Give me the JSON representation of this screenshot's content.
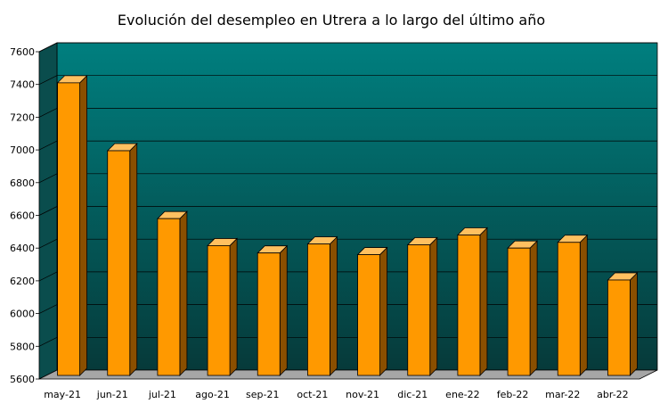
{
  "chart_data": {
    "type": "bar",
    "title": "Evolución del desempleo en Utrera a lo largo del último año",
    "xlabel": "",
    "ylabel": "",
    "categories": [
      "may-21",
      "jun-21",
      "jul-21",
      "ago-21",
      "sep-21",
      "oct-21",
      "nov-21",
      "dic-21",
      "ene-22",
      "feb-22",
      "mar-22",
      "abr-22"
    ],
    "values": [
      7410,
      6995,
      6580,
      6415,
      6370,
      6425,
      6360,
      6420,
      6480,
      6400,
      6435,
      6205
    ],
    "ylim": [
      5600,
      7600
    ],
    "yticks": [
      "5600",
      "5800",
      "6000",
      "6200",
      "6400",
      "6600",
      "6800",
      "7000",
      "7200",
      "7400",
      "7600"
    ],
    "grid": true,
    "legend": "none",
    "colors": {
      "bar_front": "#ff9900",
      "bar_side": "#8a4f00",
      "bar_top": "#ffc060",
      "bar_outline": "#000000",
      "wall_top": "#007f7f",
      "wall_bottom": "#063a3a",
      "floor": "#a6a6a6",
      "gridline": "#000000"
    }
  }
}
